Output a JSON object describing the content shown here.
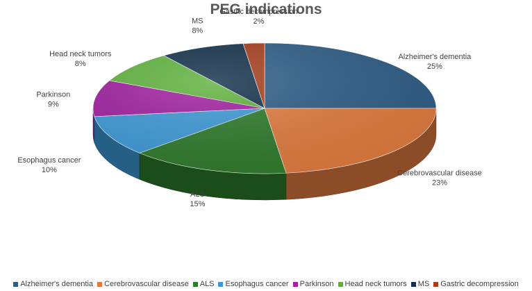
{
  "chart_data": {
    "type": "pie",
    "style": "3d",
    "title": "PEG indications",
    "legend_position": "bottom",
    "slices": [
      {
        "name": "Alzheimer's dementia",
        "value": 25,
        "label": "25%",
        "color": "#2e5d86"
      },
      {
        "name": "Cerebrovascular disease",
        "value": 23,
        "label": "23%",
        "color": "#e07b3f"
      },
      {
        "name": "ALS",
        "value": 15,
        "label": "15%",
        "color": "#2f7a2c"
      },
      {
        "name": "Esophagus cancer",
        "value": 10,
        "label": "10%",
        "color": "#3d99d6"
      },
      {
        "name": "Parkinson",
        "value": 9,
        "label": "9%",
        "color": "#a020a0"
      },
      {
        "name": "Head neck tumors",
        "value": 8,
        "label": "8%",
        "color": "#5fb13d"
      },
      {
        "name": "MS",
        "value": 8,
        "label": "8%",
        "color": "#13304a"
      },
      {
        "name": "Gastric decompression",
        "value": 2,
        "label": "2%",
        "color": "#a63e1c"
      }
    ]
  }
}
